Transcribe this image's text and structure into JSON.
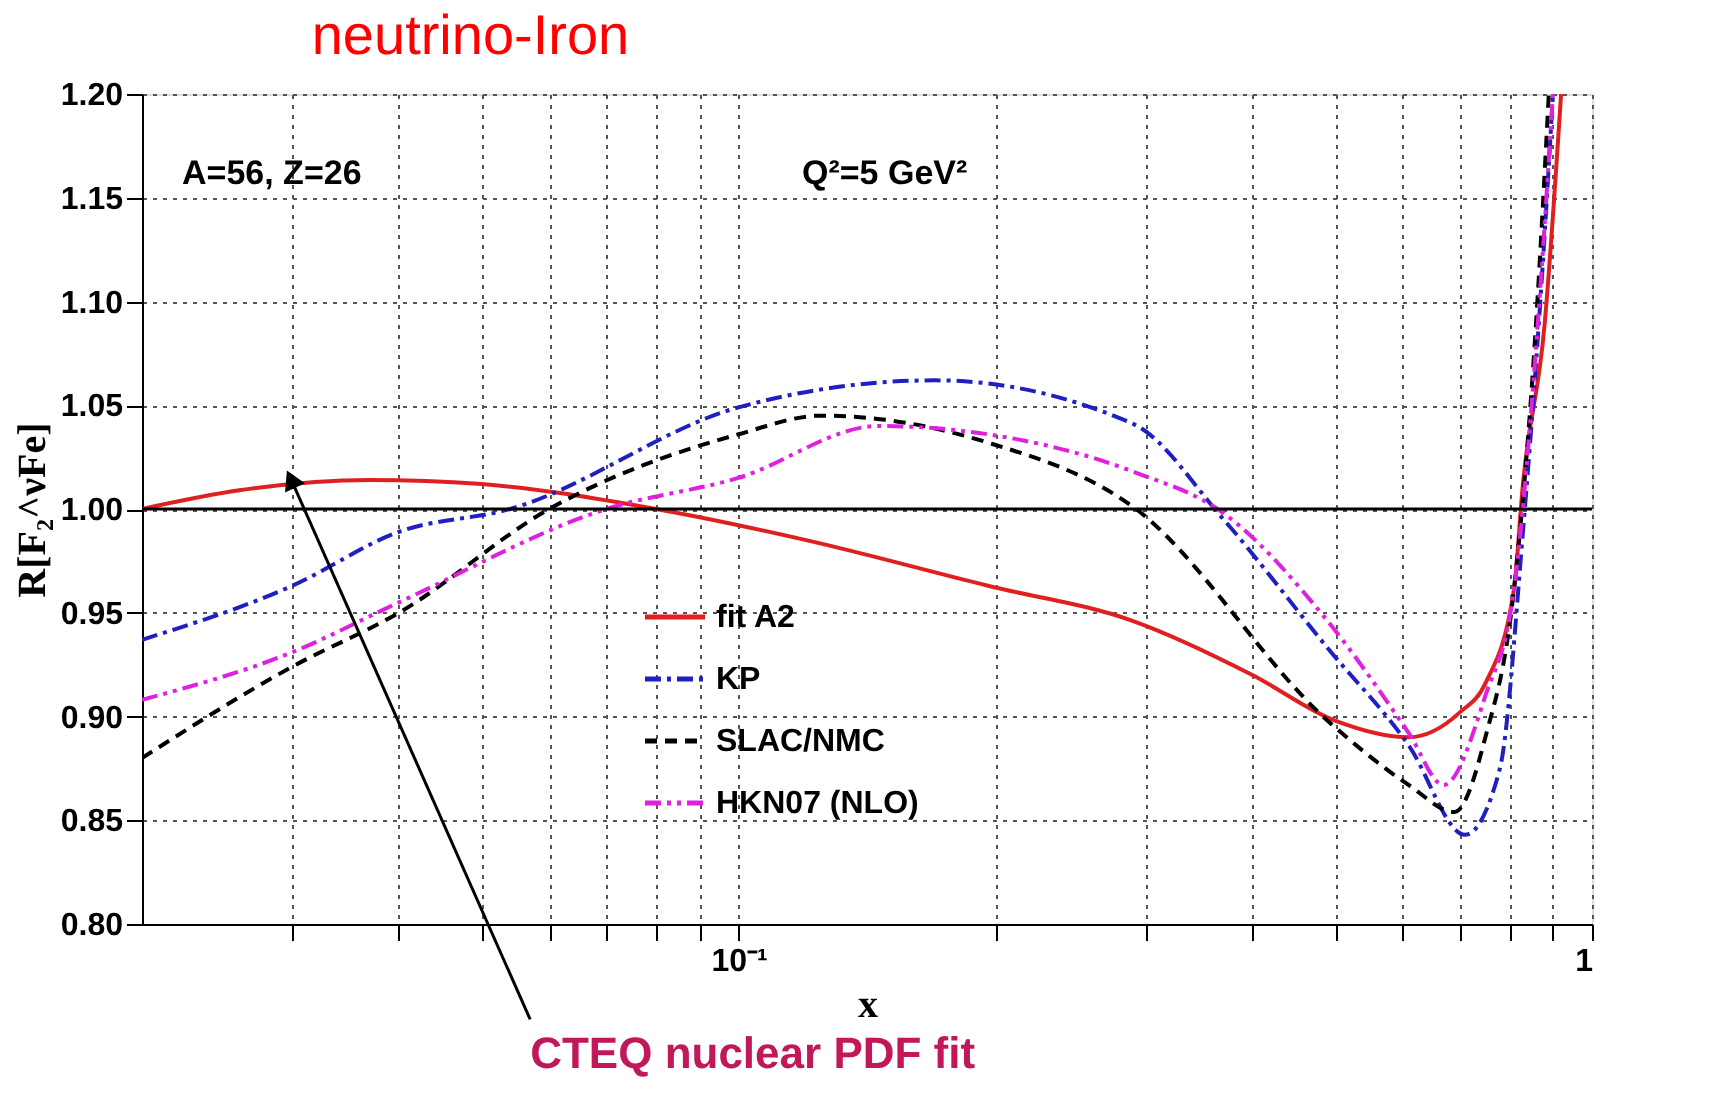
{
  "chart_data": {
    "type": "line",
    "title": "neutrino-Iron",
    "xlabel": "x",
    "ylabel": "R[F₂^νFe]",
    "log": "x",
    "grid": true,
    "legend": "bottom",
    "xlim": [
      0.02,
      1
    ],
    "ylim": [
      0.8,
      1.2
    ],
    "xticks": [
      {
        "value": 0.03,
        "label": null
      },
      {
        "value": 0.04,
        "label": null
      },
      {
        "value": 0.05,
        "label": null
      },
      {
        "value": 0.06,
        "label": null
      },
      {
        "value": 0.07,
        "label": null
      },
      {
        "value": 0.08,
        "label": null
      },
      {
        "value": 0.09,
        "label": null
      },
      {
        "value": 0.1,
        "label": "10⁻¹"
      },
      {
        "value": 0.2,
        "label": null
      },
      {
        "value": 0.3,
        "label": null
      },
      {
        "value": 0.4,
        "label": null
      },
      {
        "value": 0.5,
        "label": null
      },
      {
        "value": 0.6,
        "label": null
      },
      {
        "value": 0.7,
        "label": null
      },
      {
        "value": 0.8,
        "label": null
      },
      {
        "value": 0.9,
        "label": null
      },
      {
        "value": 1,
        "label": "1"
      }
    ],
    "yticks": [
      {
        "value": 0.8,
        "label": "0.80"
      },
      {
        "value": 0.85,
        "label": "0.85"
      },
      {
        "value": 0.9,
        "label": "0.90"
      },
      {
        "value": 0.95,
        "label": "0.95"
      },
      {
        "value": 1.0,
        "label": "1.00"
      },
      {
        "value": 1.05,
        "label": "1.05"
      },
      {
        "value": 1.1,
        "label": "1.10"
      },
      {
        "value": 1.15,
        "label": "1.15"
      },
      {
        "value": 1.2,
        "label": "1.20"
      }
    ],
    "ref_lines": [
      {
        "axis": "y",
        "value": 1.0,
        "color": "#000000",
        "line_style": "solid"
      }
    ],
    "annotations": [
      "A=56, Z=26",
      "Q²=5 GeV²",
      {
        "text": "CTEQ nuclear PDF fit",
        "x": 0.03,
        "y": 1.013
      }
    ],
    "series": [
      {
        "name": "fit A2",
        "color": "#e02020",
        "line_style": "solid",
        "x": [
          0.02,
          0.026,
          0.037,
          0.05,
          0.08,
          0.12,
          0.196,
          0.29,
          0.4,
          0.5,
          0.61,
          0.7,
          0.75,
          0.81,
          0.83,
          0.88,
          0.92
        ],
        "values": [
          1.0,
          1.009,
          1.014,
          1.012,
          1.0,
          0.985,
          0.963,
          0.946,
          0.92,
          0.898,
          0.89,
          0.902,
          0.916,
          0.961,
          1.012,
          1.089,
          1.2
        ]
      },
      {
        "name": "KP",
        "color": "#2020c0",
        "line_style": "dashdot",
        "x": [
          0.02,
          0.03,
          0.04,
          0.054,
          0.1,
          0.17,
          0.29,
          0.37,
          0.49,
          0.61,
          0.71,
          0.78,
          0.83,
          0.88,
          0.9
        ],
        "values": [
          0.937,
          0.963,
          0.989,
          1.0,
          1.049,
          1.062,
          1.041,
          0.995,
          0.933,
          0.886,
          0.843,
          0.875,
          0.989,
          1.132,
          1.2
        ]
      },
      {
        "name": "SLAC/NMC",
        "color": "#000000",
        "line_style": "dashed",
        "x": [
          0.02,
          0.03,
          0.04,
          0.06,
          0.1,
          0.125,
          0.196,
          0.29,
          0.49,
          0.61,
          0.69,
          0.75,
          0.81,
          0.86,
          0.89
        ],
        "values": [
          0.88,
          0.924,
          0.95,
          1.0,
          1.036,
          1.045,
          1.032,
          1.001,
          0.898,
          0.867,
          0.854,
          0.89,
          0.961,
          1.09,
          1.2
        ]
      },
      {
        "name": "HKN07 (NLO)",
        "color": "#e020e0",
        "line_style": "dashdotdot",
        "x": [
          0.02,
          0.03,
          0.04,
          0.07,
          0.1,
          0.146,
          0.196,
          0.29,
          0.37,
          0.49,
          0.61,
          0.67,
          0.75,
          0.81,
          0.87,
          0.9
        ],
        "values": [
          0.908,
          0.931,
          0.955,
          1.0,
          1.015,
          1.04,
          1.036,
          1.018,
          0.998,
          0.946,
          0.892,
          0.867,
          0.91,
          0.961,
          1.107,
          1.2
        ]
      }
    ]
  }
}
